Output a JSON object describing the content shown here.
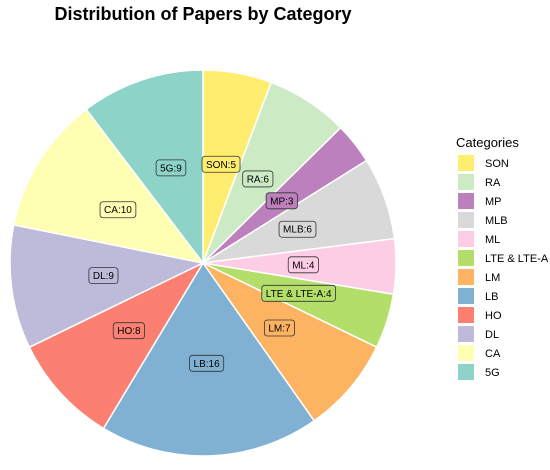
{
  "chart_data": {
    "type": "pie",
    "title": "Distribution of Papers by Category",
    "legend_title": "Categories",
    "legend_position": "right",
    "slices": [
      {
        "label": "SON",
        "value": 5,
        "color": "#FFED6F"
      },
      {
        "label": "RA",
        "value": 6,
        "color": "#CCEBC5"
      },
      {
        "label": "MP",
        "value": 3,
        "color": "#BC80BD"
      },
      {
        "label": "MLB",
        "value": 6,
        "color": "#D9D9D9"
      },
      {
        "label": "ML",
        "value": 4,
        "color": "#FCCDE5"
      },
      {
        "label": "LTE & LTE-A",
        "value": 4,
        "color": "#B3DE69"
      },
      {
        "label": "LM",
        "value": 7,
        "color": "#FDB462"
      },
      {
        "label": "LB",
        "value": 16,
        "color": "#80B1D3"
      },
      {
        "label": "HO",
        "value": 8,
        "color": "#FB8072"
      },
      {
        "label": "DL",
        "value": 9,
        "color": "#BEBADA"
      },
      {
        "label": "CA",
        "value": 10,
        "color": "#FFFFB3"
      },
      {
        "label": "5G",
        "value": 9,
        "color": "#8DD3C7"
      }
    ]
  }
}
